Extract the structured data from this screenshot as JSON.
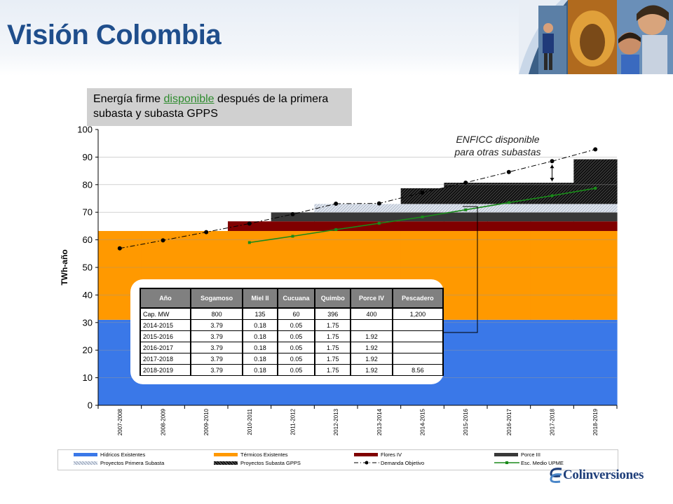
{
  "page": {
    "title": "Visión Colombia",
    "callout_pre": "Energía firme ",
    "callout_link": "disponible",
    "callout_post": " después de la primera subasta y subasta GPPS",
    "annotation": "ENFICC disponible para otras subastas",
    "annotation_line1": "ENFICC disponible",
    "annotation_line2": "para otras subastas",
    "logo_text": "Colinversiones"
  },
  "chart_data": {
    "type": "area",
    "ylabel": "TWh-año",
    "ylim": [
      0,
      100
    ],
    "yticks": [
      "0",
      "10",
      "20",
      "30",
      "40",
      "50",
      "60",
      "70",
      "80",
      "90",
      "100"
    ],
    "grid": true,
    "categories": [
      "2007-2008",
      "2008-2009",
      "2009-2010",
      "2010-2011",
      "2011-2012",
      "2012-2013",
      "2013-2014",
      "2014-2015",
      "2015-2016",
      "2016-2017",
      "2017-2018",
      "2018-2019"
    ],
    "series": [
      {
        "name": "Hídricos Existentes",
        "kind": "stack",
        "color": "#3a78e8",
        "values": [
          31,
          31,
          31,
          31,
          31,
          31,
          31,
          31,
          31,
          31,
          31,
          31
        ]
      },
      {
        "name": "Térmicos Existentes",
        "kind": "stack",
        "color": "#ff9900",
        "values": [
          32.2,
          32.2,
          32.2,
          32.2,
          32.2,
          32.2,
          32.2,
          32.2,
          32.2,
          32.2,
          32.2,
          32.2
        ]
      },
      {
        "name": "Flores IV",
        "kind": "stack",
        "color": "#800000",
        "values": [
          0,
          0,
          0,
          3.5,
          3.5,
          3.5,
          3.5,
          3.5,
          3.5,
          3.5,
          3.5,
          3.5
        ]
      },
      {
        "name": "Porce III",
        "kind": "stack",
        "color": "#383838",
        "values": [
          0,
          0,
          0,
          0,
          3.2,
          3.2,
          3.2,
          3.2,
          3.2,
          3.2,
          3.2,
          3.2
        ]
      },
      {
        "name": "Proyectos Primera Subasta",
        "kind": "stack",
        "color": "#b8c4d8",
        "values": [
          0,
          0,
          0,
          0,
          0,
          3.1,
          3.1,
          3.1,
          3.1,
          3.1,
          3.1,
          3.1
        ]
      },
      {
        "name": "Proyectos Subasta GPPS",
        "kind": "stack",
        "color": "#202020",
        "values": [
          0,
          0,
          0,
          0,
          0,
          0,
          0,
          5.7,
          7.7,
          7.7,
          7.7,
          16.2
        ]
      },
      {
        "name": "Demanda Objetivo",
        "kind": "line",
        "color": "#000000",
        "values": [
          56.9,
          59.8,
          62.8,
          65.9,
          69.3,
          73.1,
          73.2,
          77.1,
          80.7,
          84.6,
          88.5,
          92.8
        ]
      },
      {
        "name": "Esc. Medio UPME",
        "kind": "line",
        "color": "#1a8a1a",
        "values": [
          null,
          null,
          null,
          59.0,
          61.3,
          63.7,
          66.0,
          68.3,
          70.9,
          73.5,
          76.0,
          78.7
        ]
      }
    ],
    "legend": [
      "Hídricos Existentes",
      "Térmicos Existentes",
      "Flores IV",
      "Porce III",
      "Proyectos Primera Subasta",
      "Proyectos Subasta GPPS",
      "Demanda Objetivo",
      "Esc. Medio UPME"
    ],
    "legend_position": "bottom"
  },
  "table": {
    "headers": [
      "Año",
      "Sogamoso",
      "Miel II",
      "Cucuana",
      "Quimbo",
      "Porce IV",
      "Pescadero"
    ],
    "rows": [
      [
        "Cap. MW",
        "800",
        "135",
        "60",
        "396",
        "400",
        "1,200"
      ],
      [
        "2014-2015",
        "3.79",
        "0.18",
        "0.05",
        "1.75",
        "",
        ""
      ],
      [
        "2015-2016",
        "3.79",
        "0.18",
        "0.05",
        "1.75",
        "1.92",
        ""
      ],
      [
        "2016-2017",
        "3.79",
        "0.18",
        "0.05",
        "1.75",
        "1.92",
        ""
      ],
      [
        "2017-2018",
        "3.79",
        "0.18",
        "0.05",
        "1.75",
        "1.92",
        ""
      ],
      [
        "2018-2019",
        "3.79",
        "0.18",
        "0.05",
        "1.75",
        "1.92",
        "8.56"
      ]
    ]
  }
}
